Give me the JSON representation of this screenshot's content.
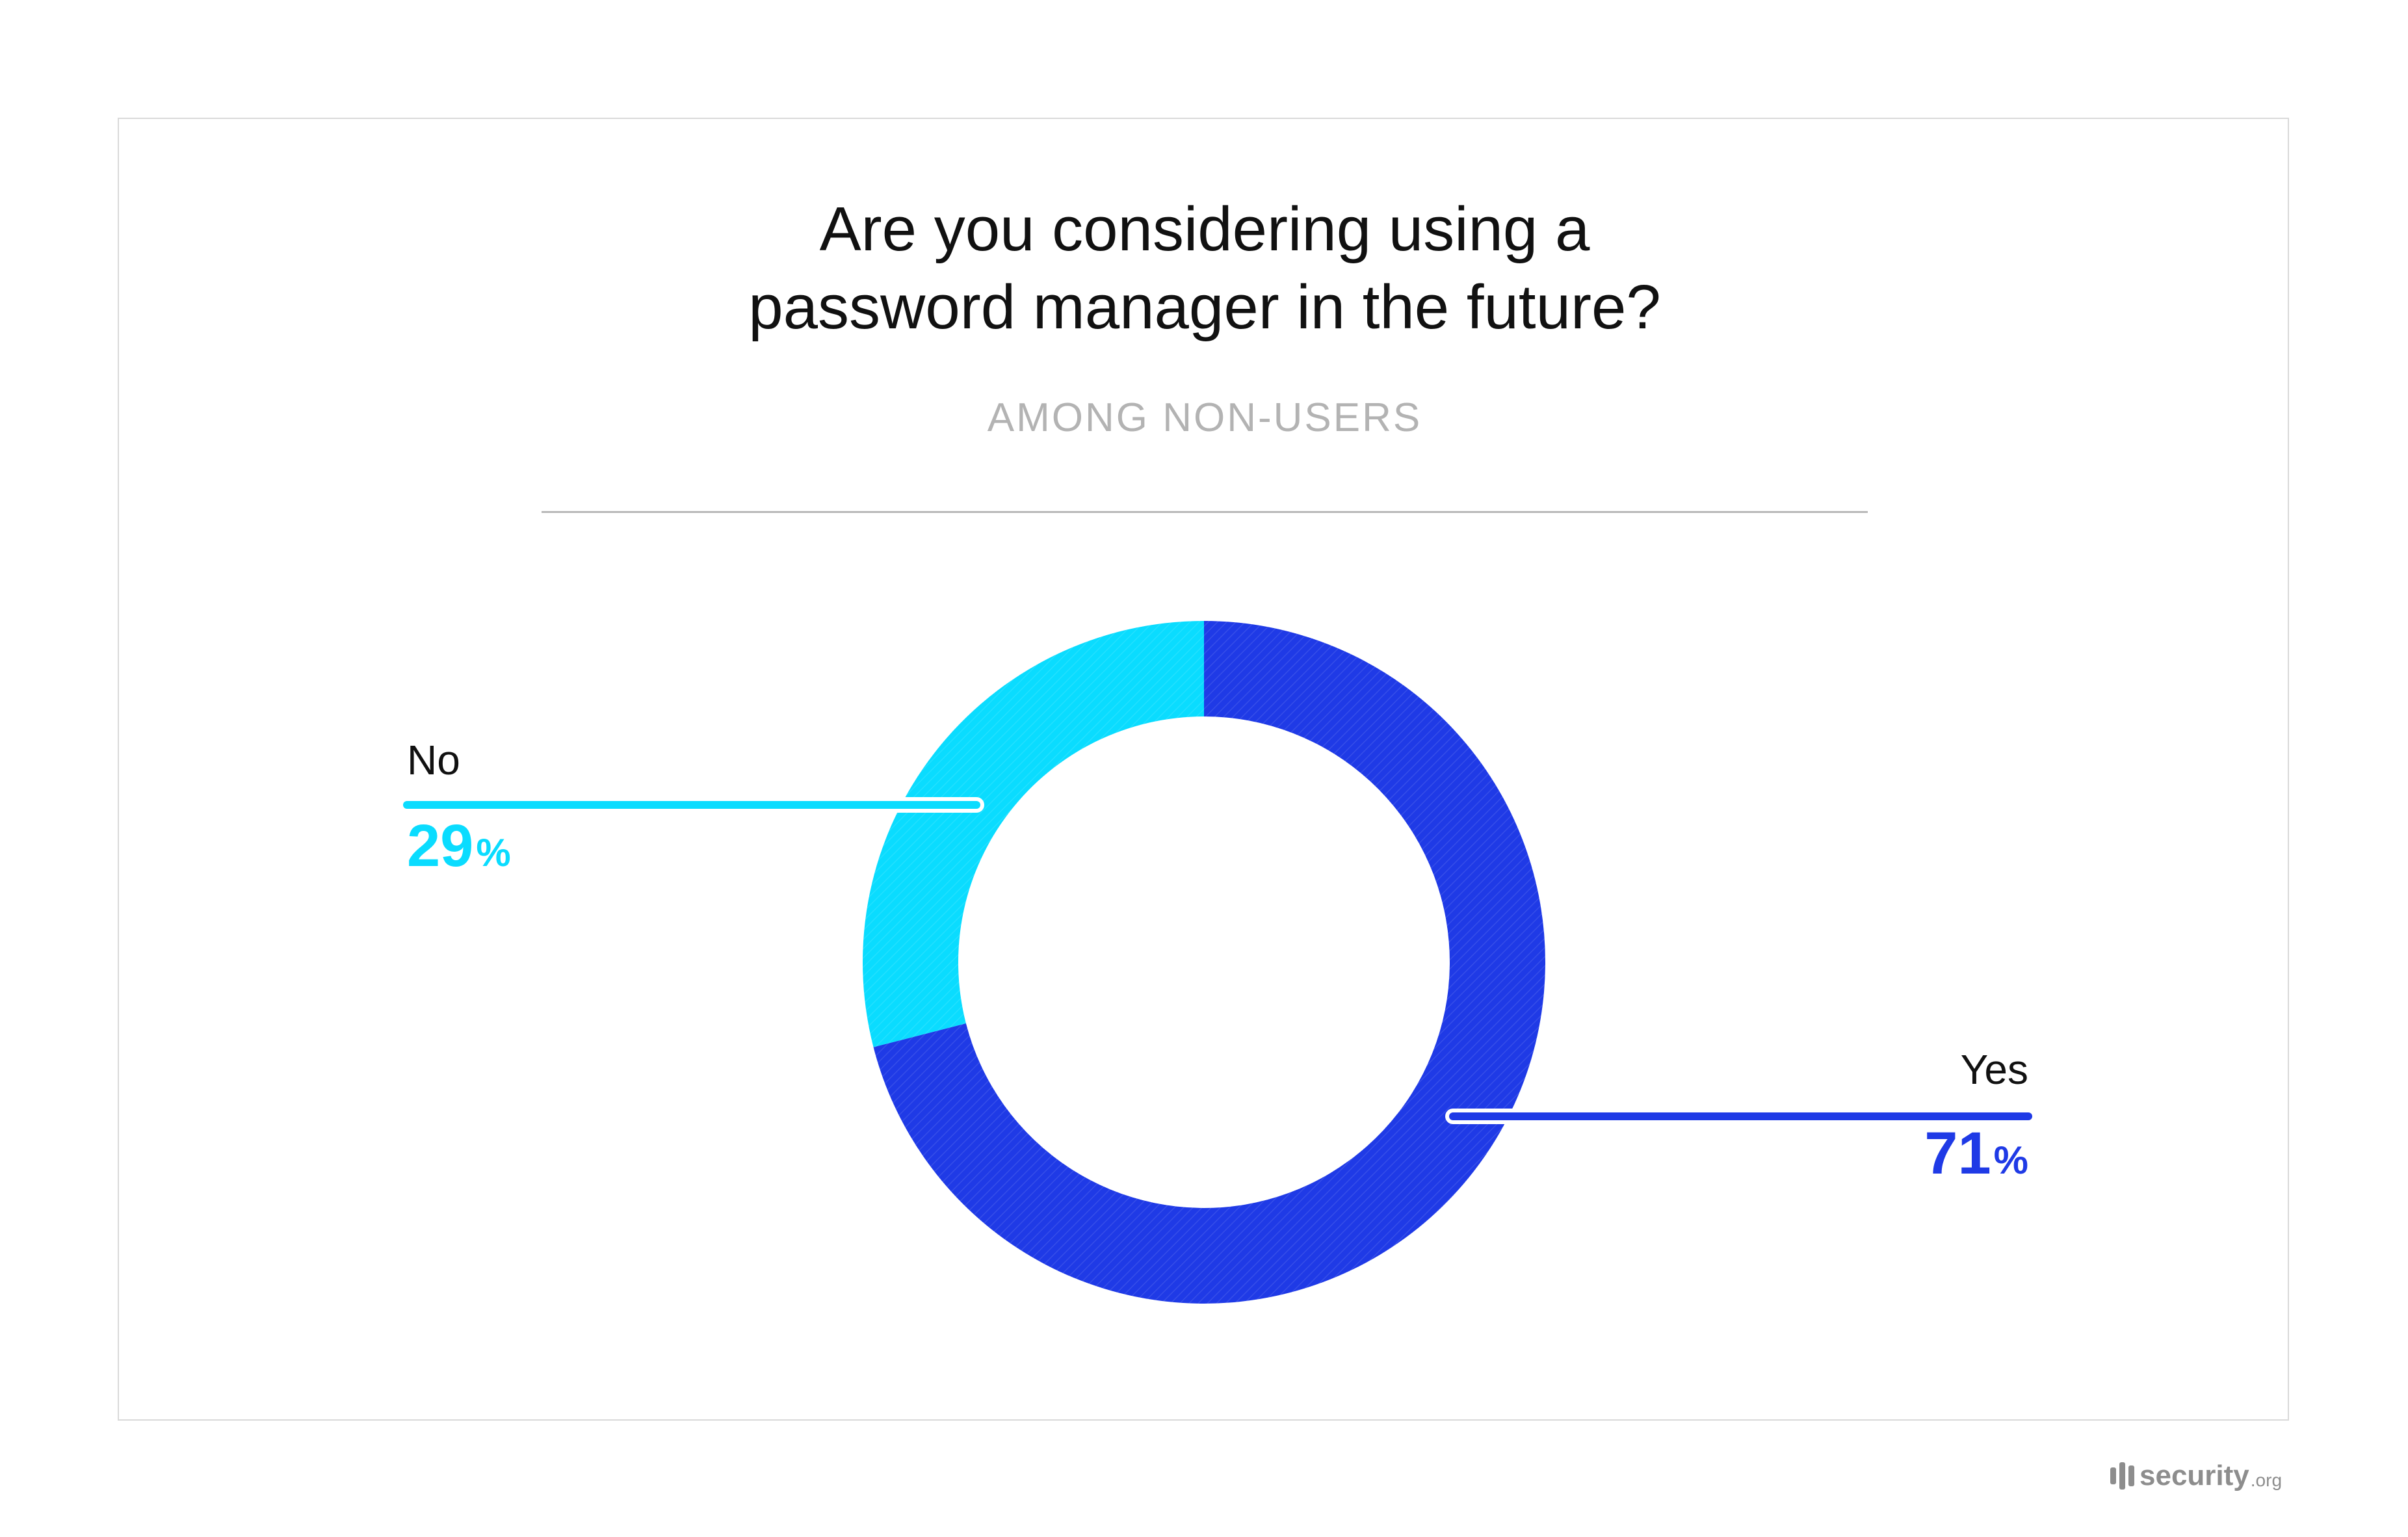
{
  "chart_data": {
    "type": "pie",
    "style": "donut",
    "title": "Are you considering using a password manager in the future?",
    "title_lines": [
      "Are you considering using a",
      "password manager in the future?"
    ],
    "subtitle": "AMONG NON-USERS",
    "slices": [
      {
        "label": "Yes",
        "value": 71,
        "display": "71",
        "unit": "%",
        "color": "#1f3ae6"
      },
      {
        "label": "No",
        "value": 29,
        "display": "29",
        "unit": "%",
        "color": "#0adcff"
      }
    ]
  },
  "branding": {
    "logo_name": "security",
    "logo_tld": ".org",
    "color": "#8d8d8d"
  }
}
